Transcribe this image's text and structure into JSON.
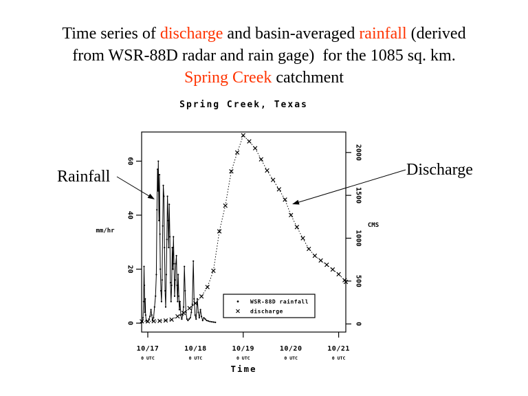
{
  "slide": {
    "title": {
      "lines": [
        [
          {
            "text": "Time series of ",
            "color": "#000000"
          },
          {
            "text": "discharge",
            "color": "#FF3300"
          },
          {
            "text": " and basin-averaged ",
            "color": "#000000"
          },
          {
            "text": "rainfall",
            "color": "#FF3300"
          },
          {
            "text": " (derived",
            "color": "#000000"
          }
        ],
        [
          {
            "text": "from WSR-88D radar and rain gage)  for the 1085 sq. km.",
            "color": "#000000"
          }
        ],
        [
          {
            "text": "Spring Creek",
            "color": "#FF3300"
          },
          {
            "text": " catchment",
            "color": "#000000"
          }
        ]
      ]
    },
    "annotations": {
      "rainfall_label": "Rainfall",
      "discharge_label": "Discharge"
    },
    "colors": {
      "accent": "#FF3300",
      "ink": "#000000",
      "background": "#FFFFFF"
    }
  },
  "chart_data": {
    "type": "line",
    "title": "Spring Creek, Texas",
    "x_axis": {
      "label": "Time",
      "tick_labels": [
        "10/17",
        "10/18",
        "10/19",
        "10/20",
        "10/21"
      ],
      "tick_sub_labels": [
        "0 UTC",
        "0 UTC",
        "0 UTC",
        "0 UTC",
        "0 UTC"
      ],
      "tick_hours": [
        0,
        24,
        48,
        72,
        96
      ],
      "major_tick_hours": [
        0,
        48,
        96
      ],
      "range_hours": [
        -3.1,
        99.6
      ]
    },
    "y_left": {
      "label": "mm/hr",
      "ticks": [
        0,
        20,
        40,
        60
      ],
      "range": [
        -3.3,
        70.8
      ]
    },
    "y_right": {
      "label": "CMS",
      "ticks": [
        0,
        500,
        1000,
        1500,
        2000
      ],
      "range": [
        -95,
        2239
      ]
    },
    "legend": {
      "items": [
        {
          "marker": "dot",
          "label": "WSR-88D rainfall"
        },
        {
          "marker": "x",
          "label": "discharge"
        }
      ]
    },
    "series": [
      {
        "name": "WSR-88D rainfall",
        "axis": "left",
        "marker": "dot",
        "units": "mm/hr",
        "points": [
          [
            -3.1,
            0.4
          ],
          [
            -2.7,
            0.5
          ],
          [
            -2.4,
            2
          ],
          [
            -2.1,
            8
          ],
          [
            -1.9,
            21
          ],
          [
            -1.7,
            14
          ],
          [
            -1.5,
            4
          ],
          [
            -1.3,
            9
          ],
          [
            -1.1,
            3
          ],
          [
            -0.8,
            1
          ],
          [
            -0.4,
            0.5
          ],
          [
            0,
            0.5
          ],
          [
            0.6,
            1.5
          ],
          [
            1.1,
            2.5
          ],
          [
            1.6,
            5
          ],
          [
            2,
            3
          ],
          [
            2.4,
            1
          ],
          [
            2.9,
            2
          ],
          [
            3.4,
            6
          ],
          [
            3.9,
            10
          ],
          [
            4.3,
            18
          ],
          [
            4.6,
            42
          ],
          [
            4.9,
            57
          ],
          [
            5.1,
            49
          ],
          [
            5.3,
            60
          ],
          [
            5.6,
            38
          ],
          [
            5.9,
            55
          ],
          [
            6.1,
            33
          ],
          [
            6.3,
            20
          ],
          [
            6.6,
            12
          ],
          [
            6.9,
            8
          ],
          [
            7.2,
            16
          ],
          [
            7.5,
            36
          ],
          [
            7.8,
            51
          ],
          [
            8.1,
            47
          ],
          [
            8.4,
            28
          ],
          [
            8.7,
            12
          ],
          [
            9.0,
            6
          ],
          [
            9.3,
            18
          ],
          [
            9.6,
            31
          ],
          [
            9.9,
            47
          ],
          [
            10.2,
            38
          ],
          [
            10.5,
            28
          ],
          [
            10.8,
            44
          ],
          [
            11.1,
            32
          ],
          [
            11.4,
            15
          ],
          [
            11.7,
            8
          ],
          [
            12.0,
            14
          ],
          [
            12.3,
            28
          ],
          [
            12.6,
            20
          ],
          [
            12.9,
            32
          ],
          [
            13.2,
            22
          ],
          [
            13.5,
            10
          ],
          [
            13.8,
            16
          ],
          [
            14.1,
            22
          ],
          [
            14.4,
            25
          ],
          [
            14.7,
            14
          ],
          [
            15.0,
            8
          ],
          [
            15.3,
            18
          ],
          [
            15.6,
            10
          ],
          [
            15.9,
            5
          ],
          [
            16.2,
            8
          ],
          [
            16.6,
            3
          ],
          [
            17.1,
            1.5
          ],
          [
            17.6,
            3
          ],
          [
            18.0,
            6
          ],
          [
            18.4,
            21
          ],
          [
            18.8,
            12
          ],
          [
            19.2,
            4
          ],
          [
            19.7,
            1.5
          ],
          [
            20.2,
            1
          ],
          [
            20.8,
            1.5
          ],
          [
            21.4,
            2
          ],
          [
            21.9,
            4
          ],
          [
            22.4,
            7
          ],
          [
            22.9,
            23
          ],
          [
            23.3,
            9
          ],
          [
            23.8,
            3
          ],
          [
            24.3,
            1.5
          ],
          [
            24.9,
            9
          ],
          [
            25.4,
            4
          ],
          [
            25.9,
            2
          ],
          [
            26.5,
            5
          ],
          [
            27.0,
            2.5
          ],
          [
            27.6,
            1
          ],
          [
            28.2,
            2
          ],
          [
            28.9,
            1.5
          ],
          [
            29.6,
            1
          ],
          [
            30.4,
            0.8
          ],
          [
            31.3,
            0.6
          ],
          [
            32.2,
            0.5
          ],
          [
            33.1,
            0.4
          ],
          [
            34.0,
            0.3
          ]
        ]
      },
      {
        "name": "discharge",
        "axis": "right",
        "marker": "x",
        "units": "CMS",
        "points": [
          [
            -3,
            30
          ],
          [
            0,
            30
          ],
          [
            3,
            32
          ],
          [
            6,
            35
          ],
          [
            9,
            40
          ],
          [
            12,
            50
          ],
          [
            15,
            88
          ],
          [
            18,
            128
          ],
          [
            21,
            184
          ],
          [
            24,
            241
          ],
          [
            27,
            321
          ],
          [
            30,
            430
          ],
          [
            33,
            620
          ],
          [
            36,
            1080
          ],
          [
            39,
            1380
          ],
          [
            42,
            1780
          ],
          [
            45,
            2000
          ],
          [
            48,
            2200
          ],
          [
            51,
            2130
          ],
          [
            54,
            2050
          ],
          [
            57,
            1920
          ],
          [
            60,
            1790
          ],
          [
            63,
            1680
          ],
          [
            66,
            1570
          ],
          [
            69,
            1450
          ],
          [
            72,
            1270
          ],
          [
            75,
            1130
          ],
          [
            78,
            1000
          ],
          [
            81,
            875
          ],
          [
            84,
            795
          ],
          [
            87,
            740
          ],
          [
            90,
            690
          ],
          [
            93,
            635
          ],
          [
            96,
            580
          ],
          [
            99,
            510
          ],
          [
            99.6,
            490
          ]
        ]
      }
    ]
  }
}
